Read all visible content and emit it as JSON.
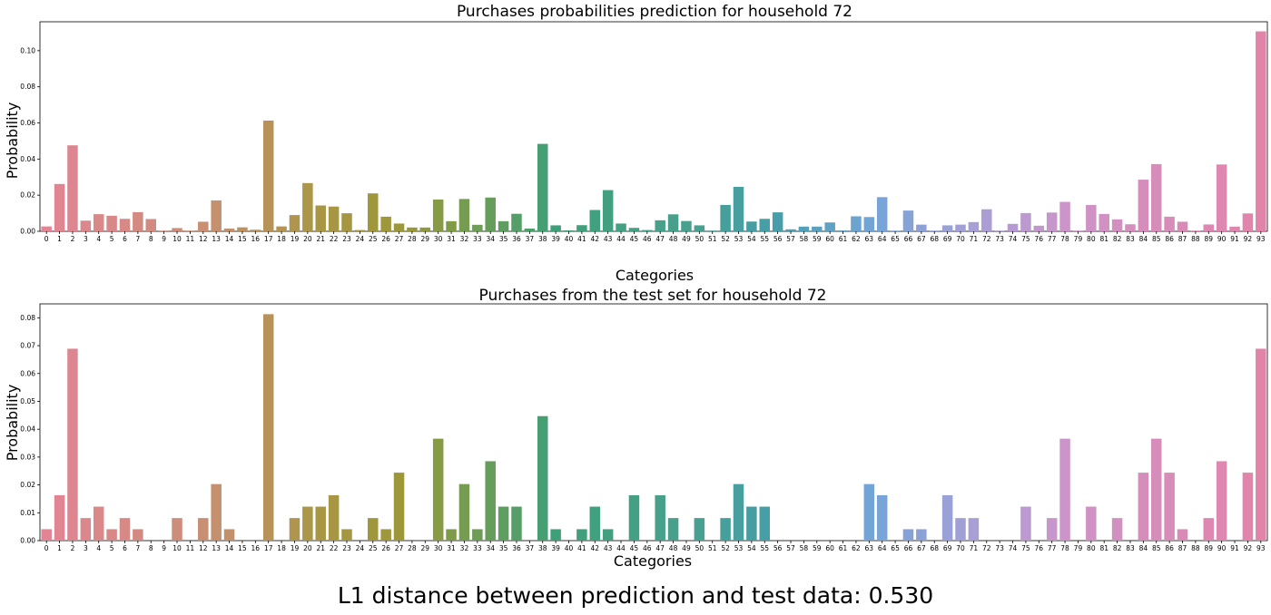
{
  "charts": [
    {
      "title": "Purchases probabilities prediction for household 72",
      "xlabel": "Categories",
      "ylabel": "Probability",
      "ylim": [
        0,
        0.116
      ],
      "yticks": [
        "0.00",
        "0.02",
        "0.04",
        "0.06",
        "0.08",
        "0.10"
      ]
    },
    {
      "title": "Purchases from the test set for household 72",
      "xlabel": "Categories",
      "ylabel": "Probability",
      "ylim": [
        0,
        0.085
      ],
      "yticks": [
        "0.00",
        "0.01",
        "0.02",
        "0.03",
        "0.04",
        "0.05",
        "0.06",
        "0.07",
        "0.08"
      ]
    }
  ],
  "footer": "L1 distance between prediction and test data: 0.530",
  "chart_data": [
    {
      "type": "bar",
      "title": "Purchases probabilities prediction for household 72",
      "xlabel": "Categories",
      "ylabel": "Probability",
      "ylim": [
        0,
        0.116
      ],
      "grid": false,
      "categories": [
        "0",
        "1",
        "2",
        "3",
        "4",
        "5",
        "6",
        "7",
        "8",
        "9",
        "10",
        "11",
        "12",
        "13",
        "14",
        "15",
        "16",
        "17",
        "18",
        "19",
        "20",
        "21",
        "22",
        "23",
        "24",
        "25",
        "26",
        "27",
        "28",
        "29",
        "30",
        "31",
        "32",
        "33",
        "34",
        "35",
        "36",
        "37",
        "38",
        "39",
        "40",
        "41",
        "42",
        "43",
        "44",
        "45",
        "46",
        "47",
        "48",
        "49",
        "50",
        "51",
        "52",
        "53",
        "54",
        "55",
        "56",
        "57",
        "58",
        "59",
        "60",
        "61",
        "62",
        "63",
        "64",
        "65",
        "66",
        "67",
        "68",
        "69",
        "70",
        "71",
        "72",
        "73",
        "74",
        "75",
        "76",
        "77",
        "78",
        "79",
        "80",
        "81",
        "82",
        "83",
        "84",
        "85",
        "86",
        "87",
        "88",
        "89",
        "90",
        "91",
        "92",
        "93"
      ],
      "values": [
        0.0027,
        0.0262,
        0.0476,
        0.0059,
        0.0095,
        0.0086,
        0.0069,
        0.0106,
        0.0068,
        0.0004,
        0.0018,
        0.0004,
        0.0053,
        0.0171,
        0.0015,
        0.0022,
        0.0009,
        0.0613,
        0.0027,
        0.009,
        0.0267,
        0.0143,
        0.0137,
        0.01,
        0.0007,
        0.021,
        0.0081,
        0.0043,
        0.0021,
        0.0021,
        0.0176,
        0.0056,
        0.0179,
        0.0036,
        0.0187,
        0.0056,
        0.0097,
        0.0015,
        0.0484,
        0.0033,
        0.0005,
        0.0034,
        0.0118,
        0.0228,
        0.0043,
        0.0019,
        0.0007,
        0.0061,
        0.0094,
        0.0057,
        0.0033,
        0.0004,
        0.0146,
        0.0246,
        0.0054,
        0.0069,
        0.0105,
        0.0011,
        0.0026,
        0.0026,
        0.0049,
        0.0005,
        0.0083,
        0.0079,
        0.0189,
        0.0004,
        0.0115,
        0.0037,
        0.0004,
        0.0033,
        0.0037,
        0.0051,
        0.0122,
        0.0004,
        0.0041,
        0.0101,
        0.0031,
        0.0104,
        0.0163,
        0.0004,
        0.0146,
        0.0096,
        0.0066,
        0.0039,
        0.0286,
        0.0372,
        0.0081,
        0.0053,
        0.0004,
        0.0038,
        0.037,
        0.0026,
        0.0099,
        0.1107
      ]
    },
    {
      "type": "bar",
      "title": "Purchases from the test set for household 72",
      "xlabel": "Categories",
      "ylabel": "Probability",
      "ylim": [
        0,
        0.085
      ],
      "grid": false,
      "categories": [
        "0",
        "1",
        "2",
        "3",
        "4",
        "5",
        "6",
        "7",
        "8",
        "9",
        "10",
        "11",
        "12",
        "13",
        "14",
        "15",
        "16",
        "17",
        "18",
        "19",
        "20",
        "21",
        "22",
        "23",
        "24",
        "25",
        "26",
        "27",
        "28",
        "29",
        "30",
        "31",
        "32",
        "33",
        "34",
        "35",
        "36",
        "37",
        "38",
        "39",
        "40",
        "41",
        "42",
        "43",
        "44",
        "45",
        "46",
        "47",
        "48",
        "49",
        "50",
        "51",
        "52",
        "53",
        "54",
        "55",
        "56",
        "57",
        "58",
        "59",
        "60",
        "61",
        "62",
        "63",
        "64",
        "65",
        "66",
        "67",
        "68",
        "69",
        "70",
        "71",
        "72",
        "73",
        "74",
        "75",
        "76",
        "77",
        "78",
        "79",
        "80",
        "81",
        "82",
        "83",
        "84",
        "85",
        "86",
        "87",
        "88",
        "89",
        "90",
        "91",
        "92",
        "93"
      ],
      "values": [
        0.0041,
        0.0163,
        0.0689,
        0.0081,
        0.0122,
        0.0041,
        0.0081,
        0.0041,
        0,
        0,
        0.0081,
        0,
        0.0081,
        0.0203,
        0.0041,
        0,
        0,
        0.0813,
        0,
        0.0081,
        0.0122,
        0.0122,
        0.0163,
        0.0041,
        0,
        0.0081,
        0.0041,
        0.0244,
        0,
        0,
        0.0366,
        0.0041,
        0.0203,
        0.0041,
        0.0285,
        0.0122,
        0.0122,
        0,
        0.0447,
        0.0041,
        0,
        0.0041,
        0.0122,
        0.0041,
        0,
        0.0163,
        0,
        0.0163,
        0.0081,
        0,
        0.0081,
        0,
        0.0081,
        0.0203,
        0.0122,
        0.0122,
        0,
        0,
        0,
        0,
        0,
        0,
        0,
        0.0203,
        0.0163,
        0,
        0.0041,
        0.0041,
        0,
        0.0163,
        0.0081,
        0.0081,
        0,
        0,
        0,
        0.0122,
        0,
        0.0081,
        0.0366,
        0,
        0.0122,
        0,
        0.0081,
        0,
        0.0244,
        0.0366,
        0.0244,
        0.0041,
        0,
        0.0081,
        0.0285,
        0,
        0.0244,
        0.0689
      ]
    }
  ]
}
